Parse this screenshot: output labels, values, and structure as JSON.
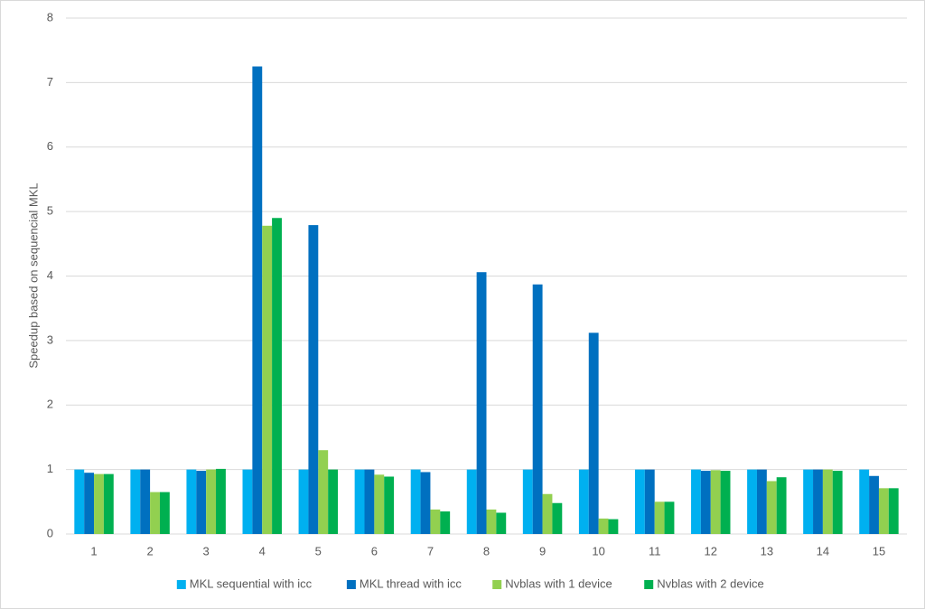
{
  "chart_data": {
    "type": "bar",
    "y_label": "Speedup based on sequencial MKL",
    "categories": [
      "1",
      "2",
      "3",
      "4",
      "5",
      "6",
      "7",
      "8",
      "9",
      "10",
      "11",
      "12",
      "13",
      "14",
      "15"
    ],
    "series": [
      {
        "name": "MKL sequential with icc",
        "color": "#00b0f0",
        "values": [
          1,
          1,
          1,
          1,
          1,
          1,
          1,
          1,
          1,
          1,
          1,
          1,
          1,
          1,
          1
        ]
      },
      {
        "name": "MKL thread with icc",
        "color": "#0070c0",
        "values": [
          0.95,
          1.0,
          0.98,
          7.25,
          4.79,
          1.0,
          0.96,
          4.06,
          3.87,
          3.12,
          1.0,
          0.98,
          1.0,
          1.0,
          0.9
        ]
      },
      {
        "name": "Nvblas with 1 device",
        "color": "#92d050",
        "values": [
          0.93,
          0.65,
          1.0,
          4.78,
          1.3,
          0.92,
          0.38,
          0.38,
          0.62,
          0.24,
          0.5,
          0.99,
          0.82,
          1.0,
          0.71
        ]
      },
      {
        "name": "Nvblas with 2 device",
        "color": "#00b050",
        "values": [
          0.93,
          0.65,
          1.01,
          4.9,
          1.0,
          0.89,
          0.35,
          0.33,
          0.48,
          0.23,
          0.5,
          0.98,
          0.88,
          0.98,
          0.71
        ]
      }
    ],
    "ylim": [
      0,
      8
    ],
    "yticks": [
      0,
      1,
      2,
      3,
      4,
      5,
      6,
      7,
      8
    ],
    "grid": true,
    "legend": "bottom"
  }
}
